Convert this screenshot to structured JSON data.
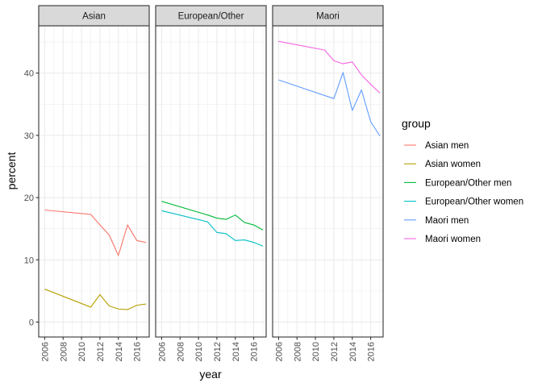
{
  "chart_data": {
    "type": "line",
    "facets": [
      "Asian",
      "European/Other",
      "Maori"
    ],
    "xlabel": "year",
    "ylabel": "percent",
    "legend_title": "group",
    "legend_position": "right",
    "grid": true,
    "xlim": [
      2005.35,
      2017.35
    ],
    "ylim": [
      -2.4,
      47.6
    ],
    "x_ticks": [
      2006,
      2008,
      2010,
      2012,
      2014,
      2016
    ],
    "y_ticks": [
      0,
      10,
      20,
      30,
      40
    ],
    "series": [
      {
        "name": "Asian men",
        "facet": "Asian",
        "color": "#F8766D",
        "x": [
          2006,
          2011,
          2012,
          2013,
          2014,
          2015,
          2016,
          2017
        ],
        "y": [
          18.0,
          17.3,
          15.6,
          14.0,
          10.7,
          15.6,
          13.1,
          12.8
        ]
      },
      {
        "name": "Asian women",
        "facet": "Asian",
        "color": "#B79F00",
        "x": [
          2006,
          2011,
          2012,
          2013,
          2014,
          2015,
          2016,
          2017
        ],
        "y": [
          5.3,
          2.4,
          4.4,
          2.6,
          2.1,
          2.0,
          2.7,
          2.9
        ]
      },
      {
        "name": "European/Other men",
        "facet": "European/Other",
        "color": "#00BA38",
        "x": [
          2006,
          2011,
          2012,
          2013,
          2014,
          2015,
          2016,
          2017
        ],
        "y": [
          19.4,
          17.2,
          16.7,
          16.5,
          17.2,
          16.0,
          15.6,
          14.8
        ]
      },
      {
        "name": "European/Other women",
        "facet": "European/Other",
        "color": "#00BFC4",
        "x": [
          2006,
          2011,
          2012,
          2013,
          2014,
          2015,
          2016,
          2017
        ],
        "y": [
          17.9,
          16.1,
          14.4,
          14.2,
          13.1,
          13.2,
          12.8,
          12.2
        ]
      },
      {
        "name": "Maori men",
        "facet": "Maori",
        "color": "#619CFF",
        "x": [
          2006,
          2012,
          2013,
          2014,
          2015,
          2016,
          2017
        ],
        "y": [
          38.9,
          35.9,
          40.1,
          34.0,
          37.3,
          32.2,
          29.9
        ]
      },
      {
        "name": "Maori women",
        "facet": "Maori",
        "color": "#F564E3",
        "x": [
          2006,
          2011,
          2012,
          2013,
          2014,
          2015,
          2016,
          2017
        ],
        "y": [
          45.1,
          43.7,
          42.0,
          41.5,
          41.8,
          39.7,
          38.2,
          36.8
        ]
      }
    ]
  }
}
